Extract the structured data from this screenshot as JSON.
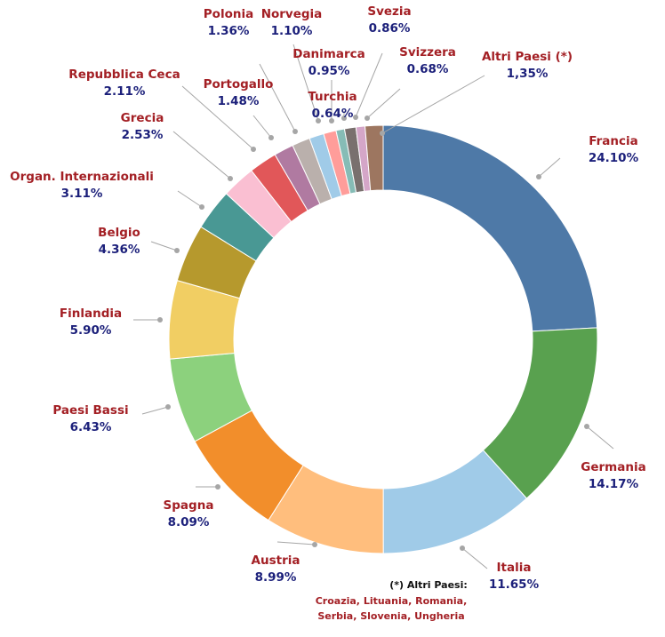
{
  "chart_data": {
    "type": "pie",
    "variant": "donut",
    "title": "",
    "slices": [
      {
        "name": "Francia",
        "label": "24.10%",
        "value": 24.1,
        "color": "#4e79a7"
      },
      {
        "name": "Germania",
        "label": "14.17%",
        "value": 14.17,
        "color": "#59a14f"
      },
      {
        "name": "Italia",
        "label": "11.65%",
        "value": 11.65,
        "color": "#a0cbe8"
      },
      {
        "name": "Austria",
        "label": "8.99%",
        "value": 8.99,
        "color": "#ffbe7d"
      },
      {
        "name": "Spagna",
        "label": "8.09%",
        "value": 8.09,
        "color": "#f28e2b"
      },
      {
        "name": "Paesi Bassi",
        "label": "6.43%",
        "value": 6.43,
        "color": "#8cd17d"
      },
      {
        "name": "Finlandia",
        "label": "5.90%",
        "value": 5.9,
        "color": "#f1ce63"
      },
      {
        "name": "Belgio",
        "label": "4.36%",
        "value": 4.36,
        "color": "#b6992d"
      },
      {
        "name": "Organ. Internazionali",
        "label": "3.11%",
        "value": 3.11,
        "color": "#499894"
      },
      {
        "name": "Grecia",
        "label": "2.53%",
        "value": 2.53,
        "color": "#fabfd2"
      },
      {
        "name": "Repubblica Ceca",
        "label": "2.11%",
        "value": 2.11,
        "color": "#e15759"
      },
      {
        "name": "Portogallo",
        "label": "1.48%",
        "value": 1.48,
        "color": "#b07aa1"
      },
      {
        "name": "Polonia",
        "label": "1.36%",
        "value": 1.36,
        "color": "#bab0ac"
      },
      {
        "name": "Norvegia",
        "label": "1.10%",
        "value": 1.1,
        "color": "#a0cbe8"
      },
      {
        "name": "Danimarca",
        "label": "0.95%",
        "value": 0.95,
        "color": "#ff9d9a"
      },
      {
        "name": "Turchia",
        "label": "0.64%",
        "value": 0.64,
        "color": "#86bcb6"
      },
      {
        "name": "Svezia",
        "label": "0.86%",
        "value": 0.86,
        "color": "#79706e"
      },
      {
        "name": "Svizzera",
        "label": "0.68%",
        "value": 0.68,
        "color": "#d4a6c8"
      },
      {
        "name": "Altri Paesi (*)",
        "label": "1,35%",
        "value": 1.35,
        "color": "#9d7660"
      }
    ],
    "footnote": {
      "title": "(*) Altri Paesi:",
      "lines": [
        "Croazia, Lituania, Romania,",
        "Serbia, Slovenia, Ungheria"
      ]
    }
  }
}
